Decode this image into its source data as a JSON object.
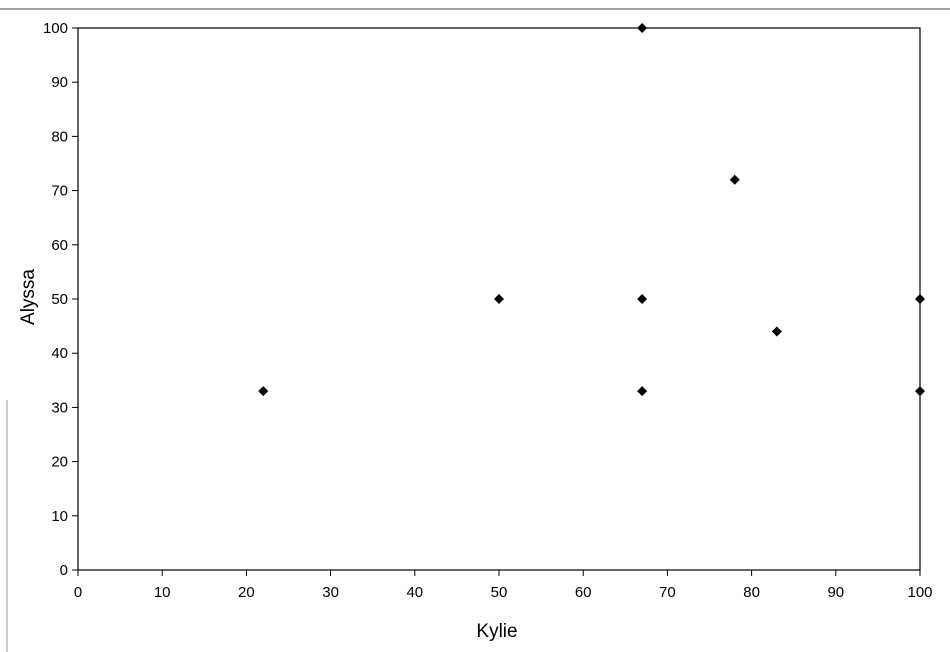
{
  "chart_data": {
    "type": "scatter",
    "title": "",
    "xlabel": "Kylie",
    "ylabel": "Alyssa",
    "xlim": [
      0,
      100
    ],
    "ylim": [
      0,
      100
    ],
    "x_ticks": [
      0,
      10,
      20,
      30,
      40,
      50,
      60,
      70,
      80,
      90,
      100
    ],
    "y_ticks": [
      0,
      10,
      20,
      30,
      40,
      50,
      60,
      70,
      80,
      90,
      100
    ],
    "grid": false,
    "legend": "none",
    "marker": "diamond",
    "marker_color": "#000000",
    "points": [
      {
        "x": 22,
        "y": 33
      },
      {
        "x": 50,
        "y": 50
      },
      {
        "x": 67,
        "y": 100
      },
      {
        "x": 67,
        "y": 50
      },
      {
        "x": 67,
        "y": 33
      },
      {
        "x": 78,
        "y": 72
      },
      {
        "x": 83,
        "y": 44
      },
      {
        "x": 100,
        "y": 50
      },
      {
        "x": 100,
        "y": 33
      }
    ]
  }
}
